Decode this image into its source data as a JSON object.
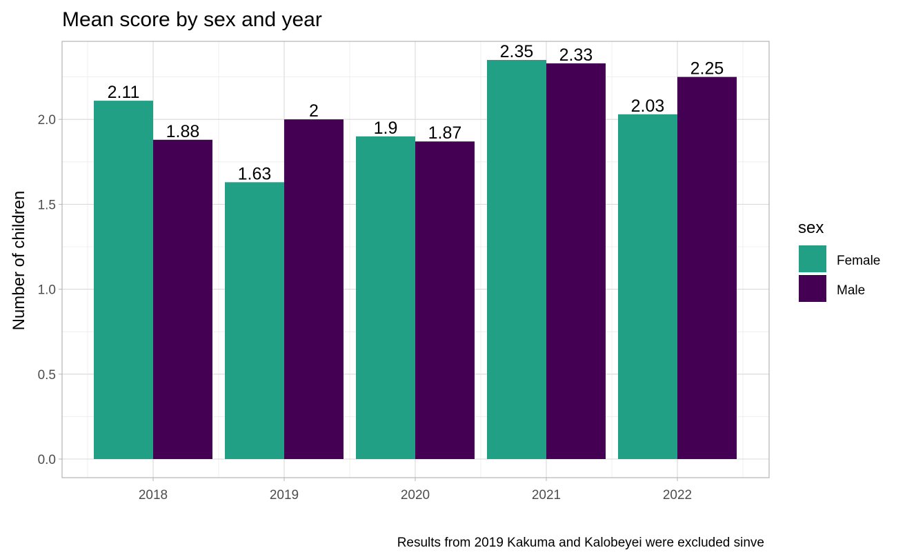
{
  "chart_data": {
    "type": "bar",
    "title": "Mean score by sex and year",
    "xlabel": "",
    "ylabel": "Number of children",
    "categories": [
      "2018",
      "2019",
      "2020",
      "2021",
      "2022"
    ],
    "series": [
      {
        "name": "Female",
        "color": "#21a086",
        "values": [
          2.11,
          1.63,
          1.9,
          2.35,
          2.03
        ],
        "labels": [
          "2.11",
          "1.63",
          "1.9",
          "2.35",
          "2.03"
        ]
      },
      {
        "name": "Male",
        "color": "#440154",
        "values": [
          1.88,
          2,
          1.87,
          2.33,
          2.25
        ],
        "labels": [
          "1.88",
          "2",
          "1.87",
          "2.33",
          "2.25"
        ]
      }
    ],
    "ylim": [
      0,
      2.47
    ],
    "yticks": [
      "0.0",
      "0.5",
      "1.0",
      "1.5",
      "2.0"
    ],
    "grid": true,
    "legend": {
      "title": "sex",
      "position": "right"
    },
    "caption": "Results from 2019 Kakuma and Kalobeyei were excluded sinve"
  }
}
